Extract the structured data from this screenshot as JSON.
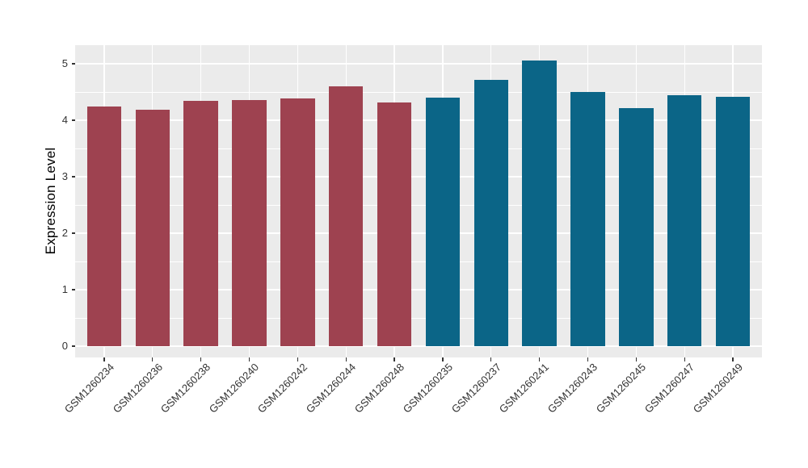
{
  "figure": {
    "kind": "static-plot",
    "background": "#ffffff"
  },
  "chart_data": {
    "type": "bar",
    "title": "",
    "xlabel": "",
    "ylabel": "Expression Level",
    "categories": [
      "GSM1260234",
      "GSM1260236",
      "GSM1260238",
      "GSM1260240",
      "GSM1260242",
      "GSM1260244",
      "GSM1260248",
      "GSM1260235",
      "GSM1260237",
      "GSM1260241",
      "GSM1260243",
      "GSM1260245",
      "GSM1260247",
      "GSM1260249"
    ],
    "values": [
      4.24,
      4.19,
      4.34,
      4.36,
      4.38,
      4.6,
      4.31,
      4.4,
      4.72,
      5.06,
      4.5,
      4.21,
      4.44,
      4.41
    ],
    "bar_colors": [
      "#9E4250",
      "#9E4250",
      "#9E4250",
      "#9E4250",
      "#9E4250",
      "#9E4250",
      "#9E4250",
      "#0B6587",
      "#0B6587",
      "#0B6587",
      "#0B6587",
      "#0B6587",
      "#0B6587",
      "#0B6587"
    ],
    "group_colors": {
      "left_group": "#9E4250",
      "right_group": "#0B6587"
    },
    "y_ticks": [
      0,
      1,
      2,
      3,
      4,
      5
    ],
    "y_minor_ticks": [
      0.5,
      1.5,
      2.5,
      3.5,
      4.5
    ],
    "ylim": [
      -0.2,
      5.33
    ],
    "grid": true,
    "legend": false,
    "x_label_angle_deg": 45,
    "panel_bg": "#EBEBEB",
    "grid_major_color": "#FFFFFF",
    "grid_minor_color": "#FFFFFF",
    "tick_mark_color": "#333333",
    "axis_text_color": "#333333"
  }
}
